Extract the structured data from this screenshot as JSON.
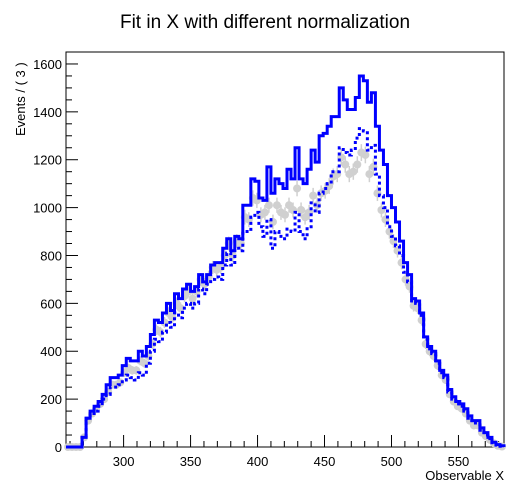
{
  "chart_data": {
    "type": "histogram",
    "title": "Fit in X with different normalization",
    "xlabel": "Observable X",
    "ylabel": "Events / ( 3 )",
    "xlim": [
      257,
      584
    ],
    "ylim": [
      0,
      1650
    ],
    "x_ticks": [
      300,
      350,
      400,
      450,
      500,
      550
    ],
    "y_ticks": [
      0,
      200,
      400,
      600,
      800,
      1000,
      1200,
      1400,
      1600
    ],
    "bin_width": 3,
    "x_start": 257,
    "bin_centers": [
      258.5,
      261.5,
      264.5,
      267.5,
      270.5,
      273.5,
      276.5,
      279.5,
      282.5,
      285.5,
      288.5,
      291.5,
      294.5,
      297.5,
      300.5,
      303.5,
      306.5,
      309.5,
      312.5,
      315.5,
      318.5,
      321.5,
      324.5,
      327.5,
      330.5,
      333.5,
      336.5,
      339.5,
      342.5,
      345.5,
      348.5,
      351.5,
      354.5,
      357.5,
      360.5,
      363.5,
      366.5,
      369.5,
      372.5,
      375.5,
      378.5,
      381.5,
      384.5,
      387.5,
      390.5,
      393.5,
      396.5,
      399.5,
      402.5,
      405.5,
      408.5,
      411.5,
      414.5,
      417.5,
      420.5,
      423.5,
      426.5,
      429.5,
      432.5,
      435.5,
      438.5,
      441.5,
      444.5,
      447.5,
      450.5,
      453.5,
      456.5,
      459.5,
      462.5,
      465.5,
      468.5,
      471.5,
      474.5,
      477.5,
      480.5,
      483.5,
      486.5,
      489.5,
      492.5,
      495.5,
      498.5,
      501.5,
      504.5,
      507.5,
      510.5,
      513.5,
      516.5,
      519.5,
      522.5,
      525.5,
      528.5,
      531.5,
      534.5,
      537.5,
      540.5,
      543.5,
      546.5,
      549.5,
      552.5,
      555.5,
      558.5,
      561.5,
      564.5,
      567.5,
      570.5,
      573.5,
      576.5,
      579.5,
      582.5
    ],
    "series": [
      {
        "name": "",
        "style": "solid",
        "color": "#0000ff",
        "values": [
          0,
          0,
          0,
          0,
          40,
          120,
          150,
          170,
          190,
          220,
          260,
          290,
          290,
          300,
          340,
          370,
          360,
          360,
          400,
          380,
          420,
          470,
          530,
          520,
          560,
          600,
          570,
          640,
          620,
          660,
          680,
          650,
          670,
          720,
          690,
          720,
          760,
          770,
          770,
          830,
          870,
          820,
          880,
          870,
          1010,
          1010,
          1120,
          1110,
          1040,
          1030,
          1170,
          1060,
          1120,
          1100,
          1080,
          1160,
          1120,
          1250,
          1120,
          1100,
          1160,
          1240,
          1190,
          1300,
          1310,
          1340,
          1380,
          1380,
          1500,
          1450,
          1410,
          1410,
          1460,
          1550,
          1530,
          1440,
          1480,
          1340,
          1240,
          1180,
          1050,
          1000,
          940,
          860,
          770,
          720,
          620,
          610,
          560,
          460,
          420,
          400,
          360,
          320,
          300,
          240,
          210,
          190,
          180,
          160,
          130,
          110,
          110,
          80,
          60,
          40,
          20,
          10,
          5
        ]
      },
      {
        "name": "",
        "style": "dotted",
        "color": "#0000ff",
        "values": [
          0,
          0,
          0,
          0,
          40,
          120,
          140,
          150,
          170,
          200,
          220,
          250,
          250,
          260,
          280,
          300,
          290,
          280,
          310,
          300,
          350,
          400,
          450,
          440,
          480,
          520,
          500,
          560,
          540,
          580,
          600,
          580,
          600,
          660,
          640,
          680,
          700,
          710,
          700,
          760,
          810,
          760,
          830,
          820,
          900,
          900,
          960,
          980,
          920,
          880,
          950,
          830,
          900,
          880,
          870,
          910,
          900,
          980,
          900,
          870,
          920,
          1020,
          980,
          1060,
          1080,
          1100,
          1150,
          1150,
          1250,
          1230,
          1220,
          1240,
          1290,
          1330,
          1320,
          1240,
          1260,
          1140,
          1050,
          1000,
          920,
          880,
          840,
          800,
          730,
          690,
          610,
          600,
          550,
          450,
          410,
          390,
          350,
          310,
          290,
          230,
          200,
          180,
          170,
          150,
          120,
          100,
          100,
          70,
          50,
          35,
          18,
          8,
          3
        ]
      },
      {
        "name": "",
        "style": "points",
        "color": "#d0d0d0",
        "values": [
          0,
          0,
          0,
          0,
          40,
          110,
          140,
          160,
          180,
          200,
          230,
          260,
          260,
          270,
          310,
          330,
          320,
          320,
          360,
          350,
          380,
          430,
          490,
          480,
          520,
          560,
          540,
          600,
          580,
          630,
          650,
          620,
          650,
          700,
          680,
          710,
          750,
          740,
          750,
          800,
          850,
          800,
          860,
          850,
          960,
          950,
          1040,
          1030,
          970,
          980,
          1010,
          940,
          1010,
          980,
          970,
          1010,
          990,
          1080,
          990,
          960,
          980,
          1050,
          1010,
          1060,
          1070,
          1090,
          1130,
          1140,
          1210,
          1180,
          1140,
          1150,
          1180,
          1230,
          1220,
          1140,
          1170,
          1060,
          990,
          950,
          900,
          860,
          820,
          770,
          700,
          670,
          590,
          580,
          530,
          430,
          400,
          380,
          340,
          300,
          280,
          220,
          190,
          170,
          160,
          140,
          110,
          90,
          90,
          60,
          45,
          30,
          15,
          5,
          2
        ]
      }
    ]
  }
}
